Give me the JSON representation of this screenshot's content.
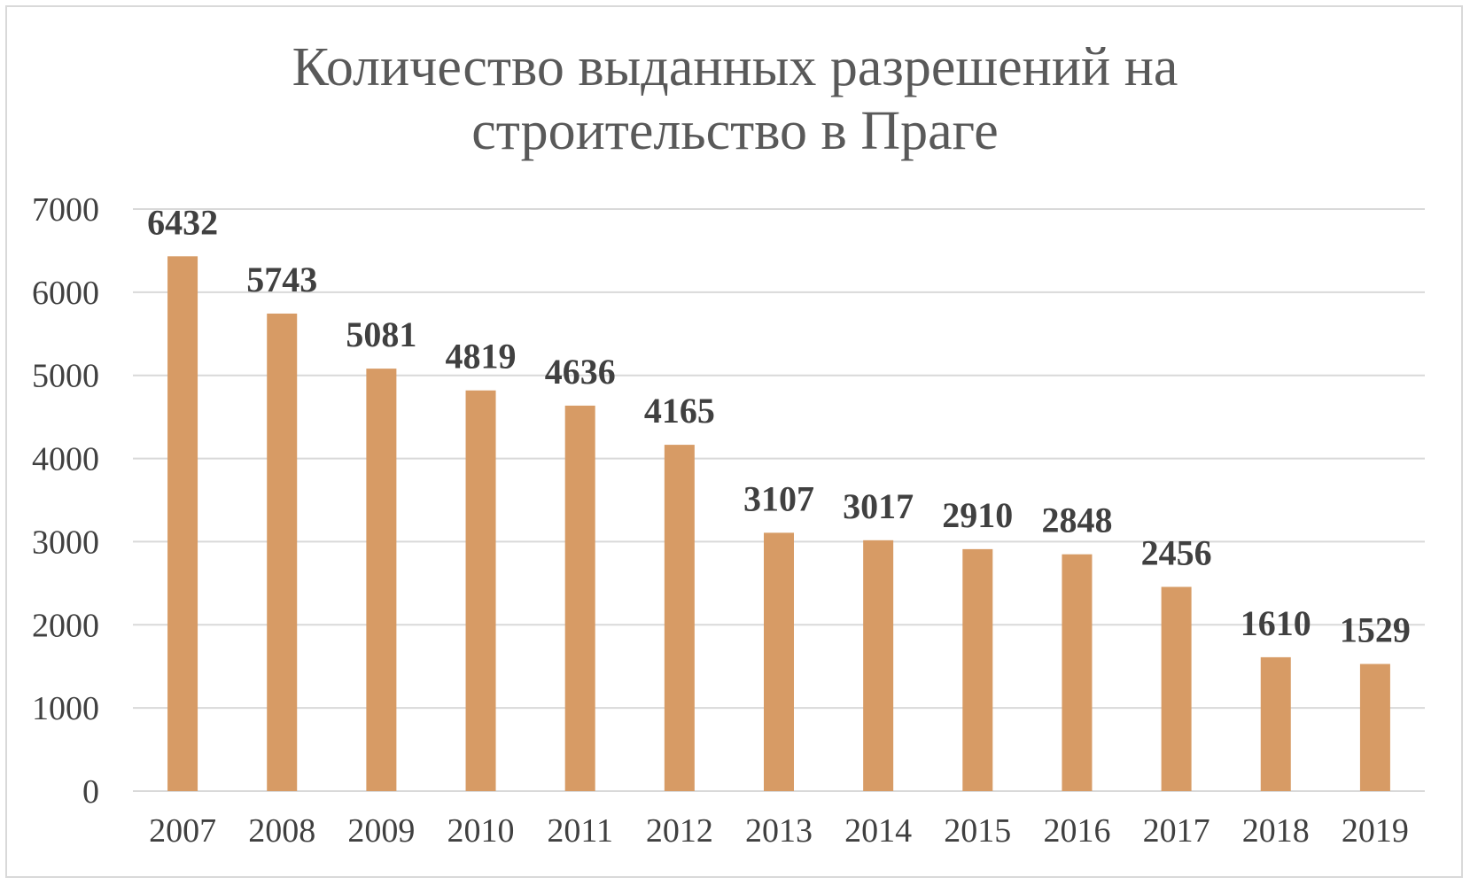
{
  "chart_data": {
    "type": "bar",
    "title_lines": [
      "Количество выданных разрешений на",
      "строительство в Праге"
    ],
    "categories": [
      "2007",
      "2008",
      "2009",
      "2010",
      "2011",
      "2012",
      "2013",
      "2014",
      "2015",
      "2016",
      "2017",
      "2018",
      "2019"
    ],
    "values": [
      6432,
      5743,
      5081,
      4819,
      4636,
      4165,
      3107,
      3017,
      2910,
      2848,
      2456,
      1610,
      1529
    ],
    "y_ticks": [
      "0",
      "1000",
      "2000",
      "3000",
      "4000",
      "5000",
      "6000",
      "7000"
    ],
    "ylim": [
      0,
      7000
    ],
    "xlabel": "",
    "ylabel": "",
    "grid": true,
    "legend": "none",
    "data_labels": true,
    "bar_color": "#d79b65",
    "grid_color": "#d9d9d9"
  }
}
